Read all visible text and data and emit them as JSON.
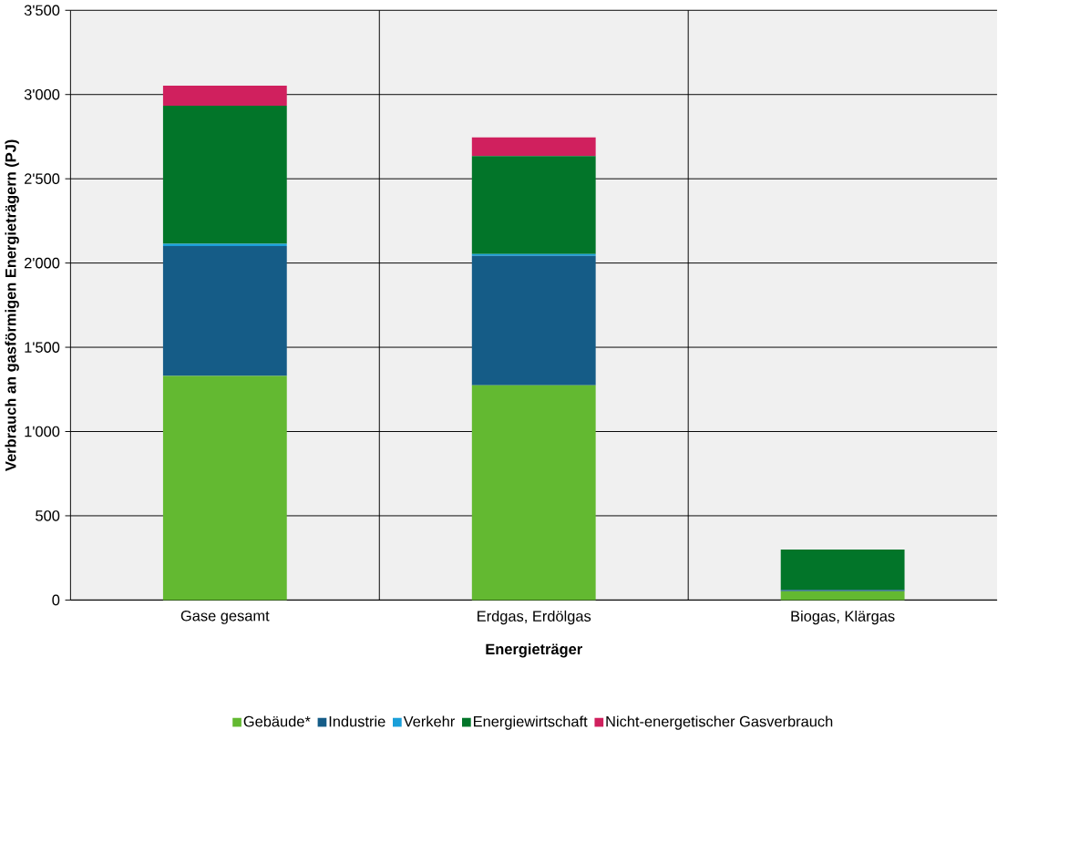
{
  "chart_data": {
    "type": "bar",
    "stacked": true,
    "xlabel": "Energieträger",
    "ylabel": "Verbrauch an gasförmigen Energieträgern (PJ)",
    "categories": [
      "Gase gesamt",
      "Erdgas, Erdölgas",
      "Biogas, Klärgas"
    ],
    "series": [
      {
        "name": "Gebäude*",
        "color": "#63b931",
        "values": [
          1330,
          1275,
          52
        ]
      },
      {
        "name": "Industrie",
        "color": "#155c87",
        "values": [
          771,
          767,
          8
        ]
      },
      {
        "name": "Verkehr",
        "color": "#1a9fd9",
        "values": [
          13,
          11,
          0
        ]
      },
      {
        "name": "Energiewirtschaft",
        "color": "#027529",
        "values": [
          820,
          582,
          240
        ]
      },
      {
        "name": "Nicht-energetischer Gasverbrauch",
        "color": "#d0205e",
        "values": [
          118,
          110,
          0
        ]
      }
    ],
    "ylim": [
      0,
      3500
    ],
    "yticks": [
      {
        "value": 0,
        "label": "0"
      },
      {
        "value": 500,
        "label": "500"
      },
      {
        "value": 1000,
        "label": "1'000"
      },
      {
        "value": 1500,
        "label": "1'500"
      },
      {
        "value": 2000,
        "label": "2'000"
      },
      {
        "value": 2500,
        "label": "2'500"
      },
      {
        "value": 3000,
        "label": "3'000"
      },
      {
        "value": 3500,
        "label": "3'500"
      }
    ],
    "grid": true,
    "legend": "bottom"
  }
}
